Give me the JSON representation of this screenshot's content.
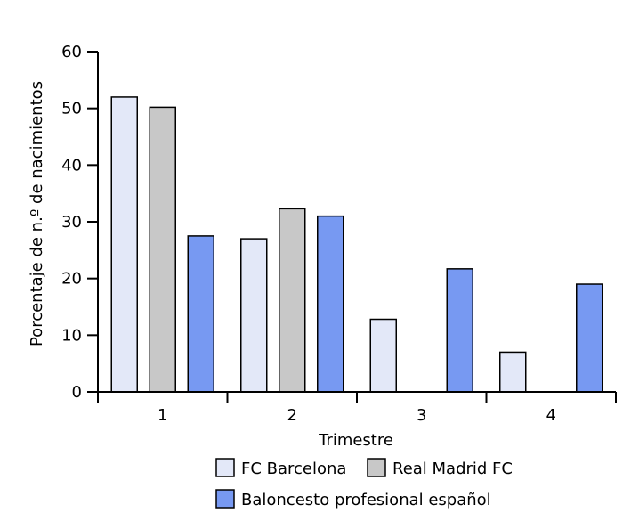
{
  "chart_data": {
    "type": "bar",
    "xlabel": "Trimestre",
    "ylabel": "Porcentaje de n.º de nacimientos",
    "categories": [
      "1",
      "2",
      "3",
      "4"
    ],
    "ylim": [
      0,
      60
    ],
    "yticks": [
      0,
      10,
      20,
      30,
      40,
      50,
      60
    ],
    "grid": false,
    "legend_position": "bottom",
    "series": [
      {
        "name": "FC Barcelona",
        "color": "#e3e8f8",
        "values": [
          52,
          27,
          12.8,
          7
        ]
      },
      {
        "name": "Real Madrid FC",
        "color": "#c8c8c8",
        "values": [
          50.2,
          32.3,
          0,
          0
        ]
      },
      {
        "name": "Baloncesto profesional español",
        "color": "#7799f2",
        "values": [
          27.5,
          31,
          21.7,
          19
        ]
      }
    ]
  }
}
